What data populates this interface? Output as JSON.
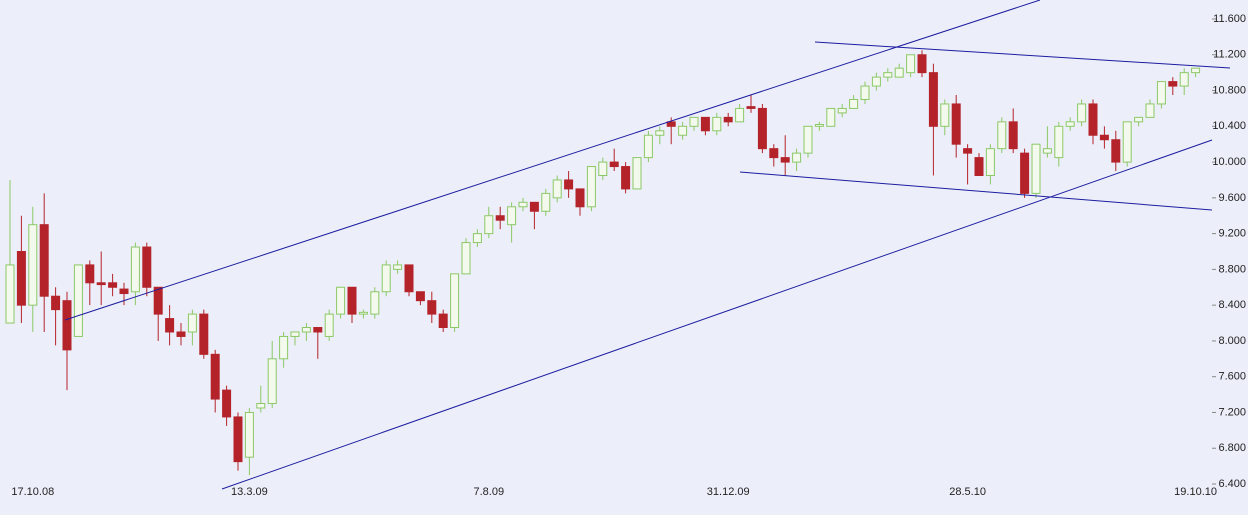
{
  "chart_data": {
    "type": "candlestick",
    "categories": [
      null,
      null,
      "17.10.08",
      null,
      null,
      null,
      null,
      null,
      null,
      null,
      null,
      null,
      null,
      null,
      null,
      null,
      null,
      null,
      null,
      null,
      null,
      "13.3.09",
      null,
      null,
      null,
      null,
      null,
      null,
      null,
      null,
      null,
      null,
      null,
      null,
      null,
      null,
      null,
      null,
      null,
      null,
      null,
      null,
      "7.8.09",
      null,
      null,
      null,
      null,
      null,
      null,
      null,
      null,
      null,
      null,
      null,
      null,
      null,
      null,
      null,
      null,
      null,
      null,
      null,
      null,
      "31.12.09",
      null,
      null,
      null,
      null,
      null,
      null,
      null,
      null,
      null,
      null,
      null,
      null,
      null,
      null,
      null,
      null,
      null,
      null,
      null,
      null,
      "28.5.10",
      null,
      null,
      null,
      null,
      null,
      null,
      null,
      null,
      null,
      null,
      null,
      null,
      null,
      null,
      null,
      null,
      null,
      null,
      null,
      "19.10.10"
    ],
    "open": [
      8.2,
      9.0,
      8.4,
      9.3,
      8.5,
      8.45,
      8.05,
      8.85,
      8.65,
      8.65,
      8.58,
      8.55,
      9.05,
      8.6,
      8.25,
      8.1,
      8.1,
      8.3,
      7.85,
      7.45,
      7.15,
      6.7,
      7.25,
      7.3,
      7.8,
      8.05,
      8.1,
      8.15,
      8.05,
      8.3,
      8.6,
      8.3,
      8.3,
      8.55,
      8.8,
      8.85,
      8.55,
      8.45,
      8.3,
      8.15,
      8.75,
      9.1,
      9.2,
      9.4,
      9.3,
      9.5,
      9.55,
      9.45,
      9.6,
      9.8,
      9.7,
      9.5,
      9.85,
      10.0,
      9.95,
      9.7,
      10.05,
      10.3,
      10.45,
      10.3,
      10.4,
      10.5,
      10.35,
      10.5,
      10.45,
      10.62,
      10.6,
      10.15,
      10.05,
      10.0,
      10.1,
      10.4,
      10.4,
      10.55,
      10.6,
      10.7,
      10.85,
      10.95,
      10.95,
      11.0,
      11.2,
      11.0,
      10.4,
      10.65,
      10.15,
      10.05,
      9.85,
      10.15,
      10.45,
      10.1,
      9.65,
      10.1,
      10.05,
      10.4,
      10.45,
      10.65,
      10.3,
      10.25,
      10.0,
      10.45,
      10.5,
      10.65,
      10.9,
      10.85,
      11.0
    ],
    "high": [
      9.8,
      9.4,
      9.5,
      9.65,
      8.6,
      8.55,
      8.85,
      8.9,
      9.0,
      8.75,
      8.65,
      9.1,
      9.1,
      8.6,
      8.4,
      8.2,
      8.35,
      8.35,
      7.9,
      7.5,
      7.2,
      7.25,
      7.5,
      8.0,
      8.1,
      8.1,
      8.2,
      8.15,
      8.35,
      8.6,
      8.6,
      8.35,
      8.6,
      8.9,
      8.9,
      8.85,
      8.55,
      8.55,
      8.35,
      8.75,
      9.15,
      9.25,
      9.5,
      9.5,
      9.55,
      9.6,
      9.55,
      9.7,
      9.85,
      9.9,
      9.7,
      9.95,
      10.05,
      10.15,
      10.0,
      10.05,
      10.35,
      10.4,
      10.5,
      10.45,
      10.5,
      10.5,
      10.55,
      10.55,
      10.65,
      10.75,
      10.65,
      10.2,
      10.3,
      10.15,
      10.4,
      10.45,
      10.6,
      10.65,
      10.75,
      10.9,
      11.0,
      11.05,
      11.1,
      11.2,
      11.25,
      11.1,
      10.7,
      10.75,
      10.2,
      10.1,
      10.2,
      10.5,
      10.6,
      10.15,
      10.2,
      10.4,
      10.45,
      10.5,
      10.7,
      10.7,
      10.4,
      10.35,
      10.45,
      10.5,
      10.7,
      10.9,
      10.95,
      11.05,
      11.05
    ],
    "low": [
      8.2,
      8.2,
      8.1,
      8.1,
      7.95,
      7.45,
      8.05,
      8.4,
      8.4,
      8.5,
      8.4,
      8.4,
      8.5,
      8.0,
      7.95,
      7.95,
      7.95,
      7.8,
      7.2,
      7.05,
      6.55,
      6.5,
      7.2,
      7.25,
      7.7,
      7.95,
      8.0,
      7.8,
      8.0,
      8.25,
      8.2,
      8.25,
      8.25,
      8.5,
      8.75,
      8.5,
      8.4,
      8.2,
      8.1,
      8.1,
      8.75,
      9.05,
      9.15,
      9.25,
      9.1,
      9.45,
      9.25,
      9.4,
      9.55,
      9.6,
      9.4,
      9.45,
      9.8,
      9.9,
      9.65,
      9.7,
      10.0,
      10.2,
      10.2,
      10.25,
      10.35,
      10.3,
      10.3,
      10.4,
      10.45,
      10.55,
      10.1,
      9.95,
      9.85,
      9.9,
      10.05,
      10.35,
      10.4,
      10.5,
      10.6,
      10.65,
      10.8,
      10.9,
      10.95,
      10.95,
      10.95,
      9.85,
      10.3,
      10.05,
      9.75,
      9.85,
      9.75,
      10.1,
      10.1,
      9.6,
      9.6,
      10.05,
      9.95,
      10.35,
      10.4,
      10.2,
      10.15,
      9.9,
      9.95,
      10.4,
      10.5,
      10.6,
      10.75,
      10.75,
      10.95
    ],
    "close": [
      8.85,
      8.4,
      9.3,
      8.5,
      8.35,
      7.9,
      8.85,
      8.65,
      8.63,
      8.6,
      8.53,
      9.05,
      8.6,
      8.3,
      8.1,
      8.05,
      8.3,
      7.85,
      7.35,
      7.15,
      6.65,
      7.2,
      7.3,
      7.8,
      8.05,
      8.1,
      8.15,
      8.1,
      8.3,
      8.6,
      8.3,
      8.32,
      8.55,
      8.85,
      8.85,
      8.55,
      8.45,
      8.3,
      8.15,
      8.75,
      9.1,
      9.2,
      9.4,
      9.35,
      9.5,
      9.55,
      9.45,
      9.65,
      9.8,
      9.7,
      9.5,
      9.95,
      10.0,
      9.95,
      9.7,
      10.05,
      10.3,
      10.35,
      10.4,
      10.4,
      10.5,
      10.35,
      10.5,
      10.45,
      10.6,
      10.6,
      10.15,
      10.05,
      10.0,
      10.1,
      10.4,
      10.42,
      10.6,
      10.6,
      10.7,
      10.85,
      10.95,
      11.0,
      11.05,
      11.2,
      11.0,
      10.4,
      10.65,
      10.2,
      10.1,
      9.85,
      10.15,
      10.45,
      10.15,
      9.65,
      10.2,
      10.15,
      10.4,
      10.45,
      10.65,
      10.3,
      10.25,
      10.0,
      10.45,
      10.5,
      10.65,
      10.9,
      10.85,
      11.0,
      11.05
    ],
    "up_color": "#8cc866",
    "down_color": "#b4232a",
    "ylim": [
      6.4,
      11.6
    ],
    "yticks": [
      {
        "value": 6.4,
        "label": "6.400"
      },
      {
        "value": 6.8,
        "label": "6.800"
      },
      {
        "value": 7.2,
        "label": "7.200"
      },
      {
        "value": 7.6,
        "label": "7.600"
      },
      {
        "value": 8.0,
        "label": "8.000"
      },
      {
        "value": 8.4,
        "label": "8.400"
      },
      {
        "value": 8.8,
        "label": "8.800"
      },
      {
        "value": 9.2,
        "label": "9.200"
      },
      {
        "value": 9.6,
        "label": "9.600"
      },
      {
        "value": 10.0,
        "label": "10.000"
      },
      {
        "value": 10.4,
        "label": "10.400"
      },
      {
        "value": 10.8,
        "label": "10.800"
      },
      {
        "value": 11.2,
        "label": "11.200"
      },
      {
        "value": 11.6,
        "label": "11.600"
      }
    ],
    "grid": false
  }
}
